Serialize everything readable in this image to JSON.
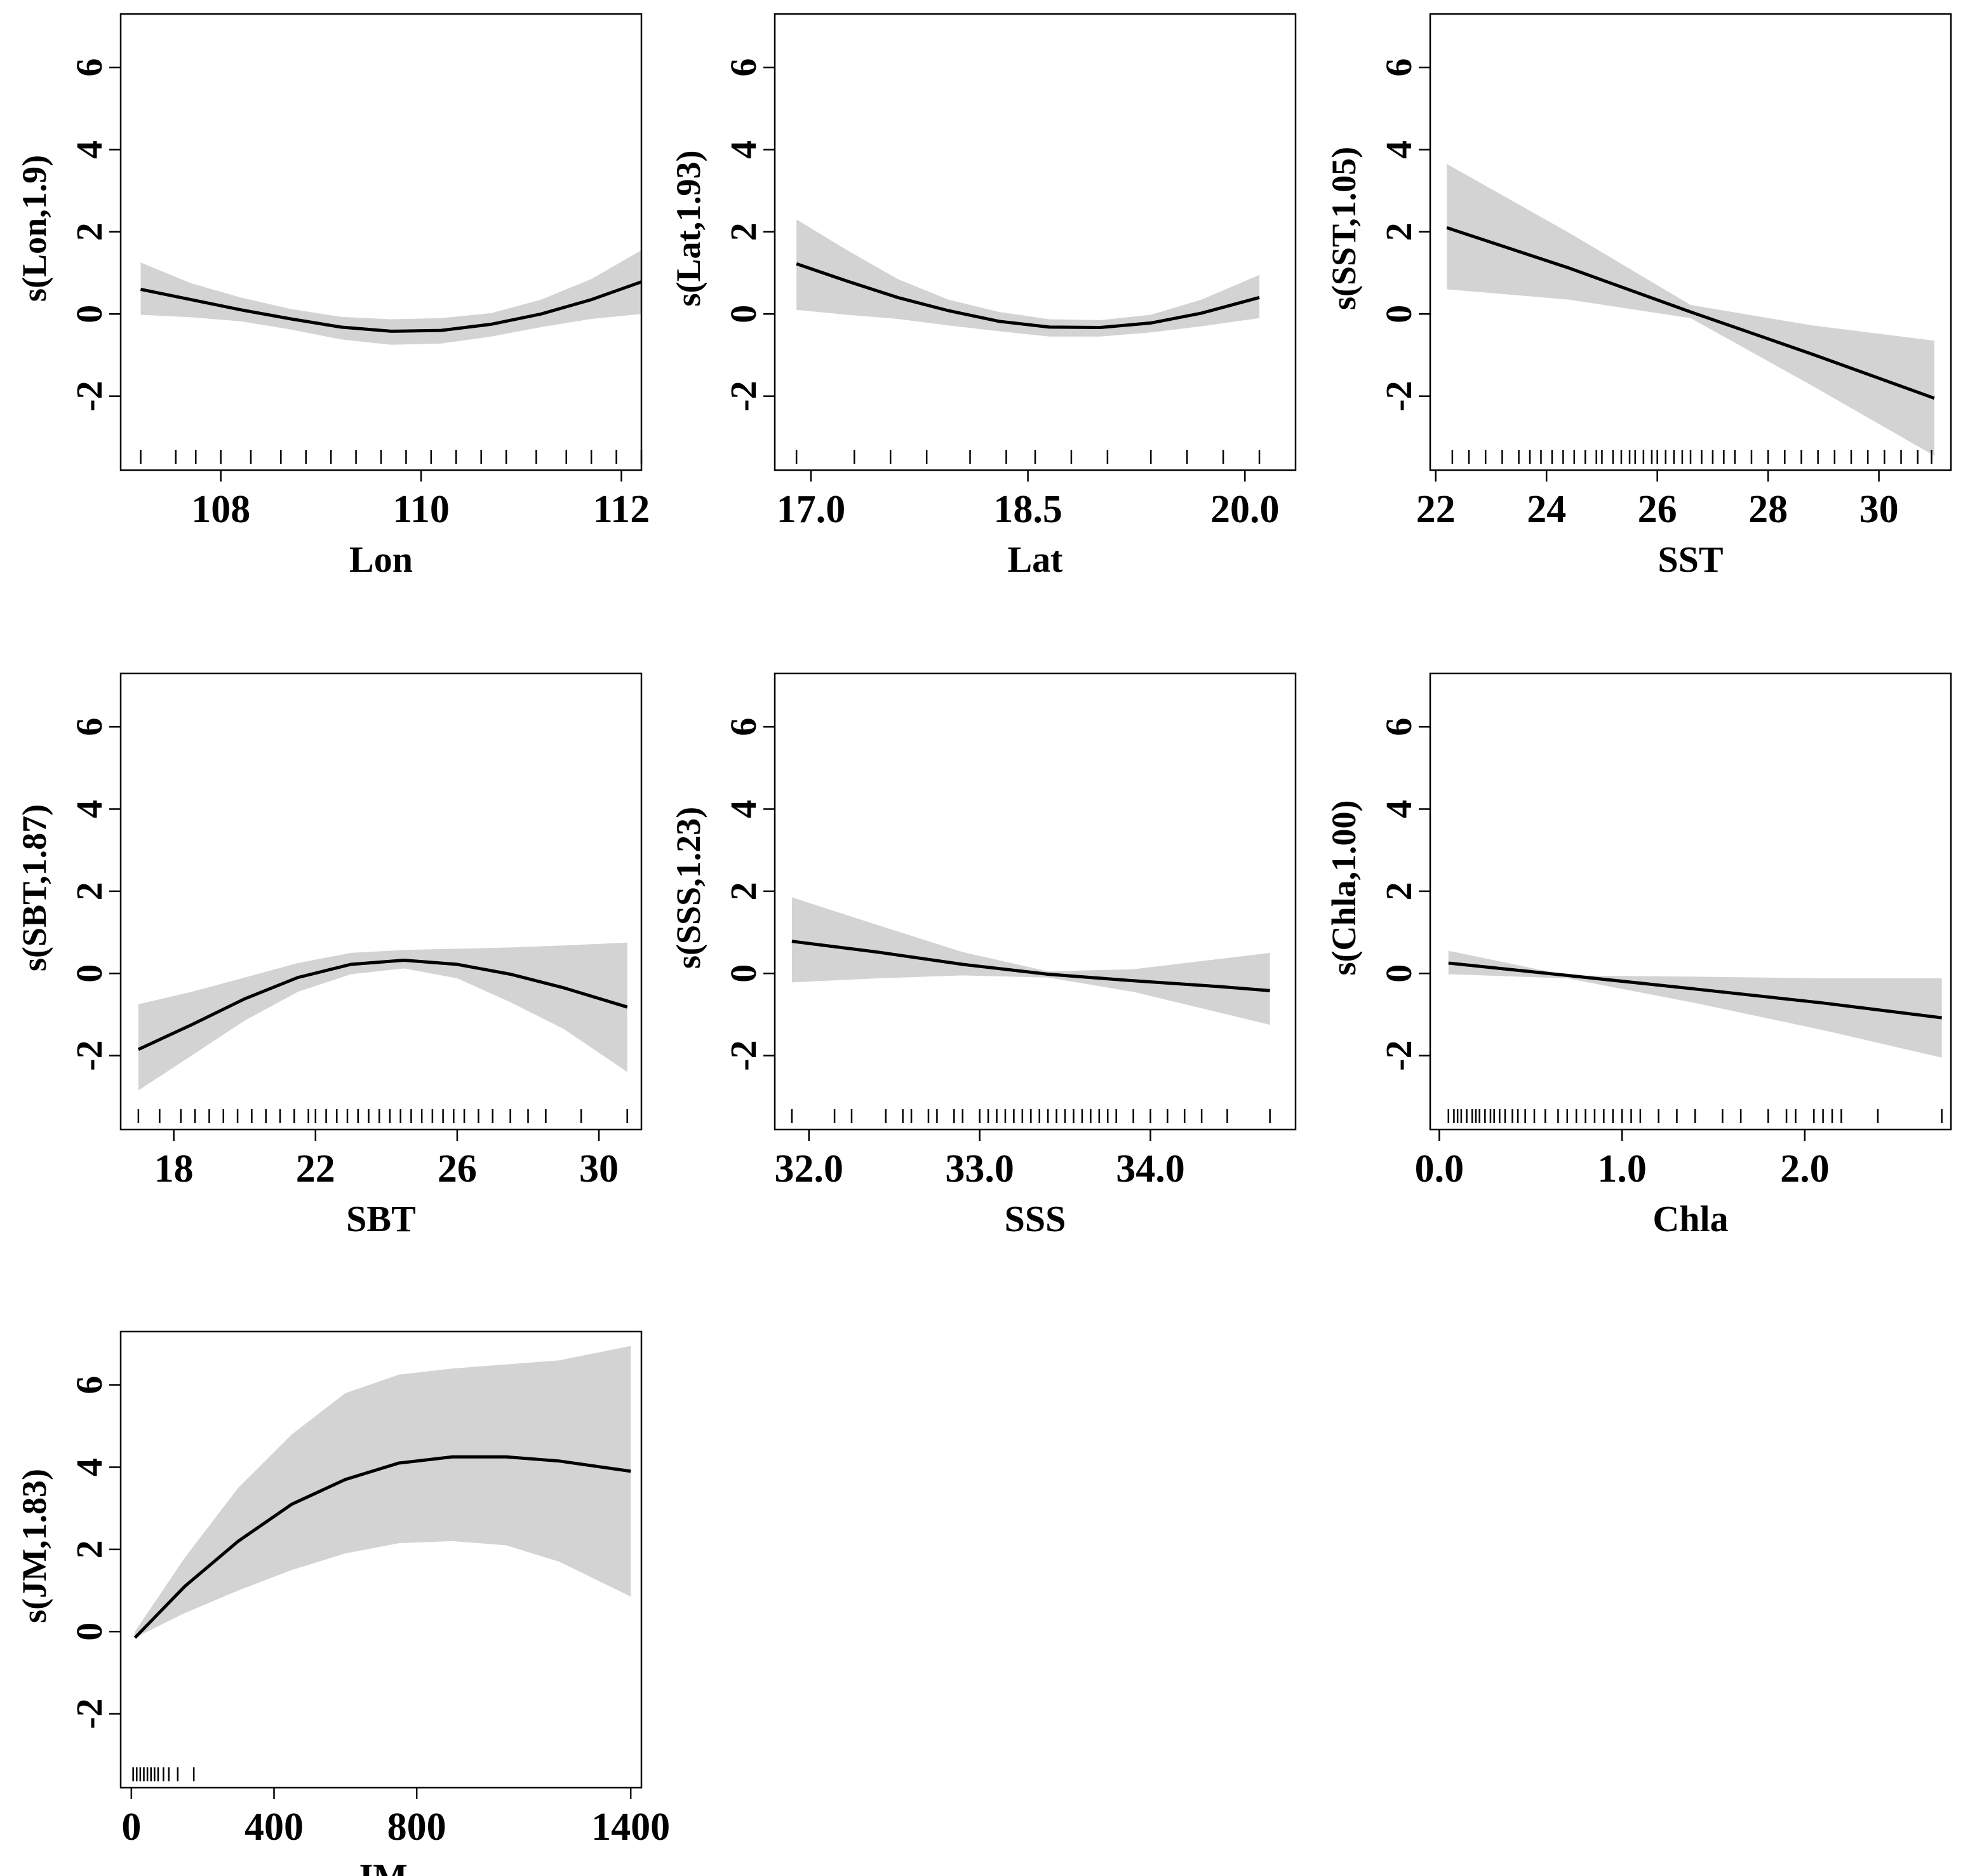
{
  "chart_data": [
    {
      "type": "line",
      "title": "",
      "xlabel": "Lon",
      "ylabel": "s(Lon,1.9)",
      "xlim": [
        107.0,
        112.2
      ],
      "ylim": [
        -3.8,
        7.3
      ],
      "xticks": [
        108,
        110,
        112
      ],
      "xtick_labels": [
        "108",
        "110",
        "112"
      ],
      "yticks": [
        -2,
        0,
        2,
        4,
        6
      ],
      "ytick_labels": [
        "-2",
        "0",
        "2",
        "4",
        "6"
      ],
      "x": [
        107.2,
        107.7,
        108.2,
        108.7,
        109.2,
        109.7,
        110.2,
        110.7,
        111.2,
        111.7,
        112.2
      ],
      "fit": [
        0.6,
        0.35,
        0.1,
        -0.12,
        -0.32,
        -0.42,
        -0.4,
        -0.25,
        0.0,
        0.35,
        0.78
      ],
      "upper": [
        1.25,
        0.75,
        0.4,
        0.12,
        -0.07,
        -0.13,
        -0.1,
        0.02,
        0.35,
        0.85,
        1.55
      ],
      "lower": [
        -0.02,
        -0.08,
        -0.18,
        -0.38,
        -0.62,
        -0.75,
        -0.72,
        -0.55,
        -0.32,
        -0.12,
        0.0
      ],
      "rug": [
        107.2,
        107.55,
        107.75,
        108.0,
        108.3,
        108.6,
        108.85,
        109.1,
        109.35,
        109.6,
        109.85,
        110.1,
        110.35,
        110.6,
        110.85,
        111.15,
        111.45,
        111.7,
        111.95,
        112.2
      ]
    },
    {
      "type": "line",
      "title": "",
      "xlabel": "Lat",
      "ylabel": "s(Lat,1.93)",
      "xlim": [
        16.75,
        20.35
      ],
      "ylim": [
        -3.8,
        7.3
      ],
      "xticks": [
        17.0,
        18.5,
        20.0
      ],
      "xtick_labels": [
        "17.0",
        "18.5",
        "20.0"
      ],
      "yticks": [
        -2,
        0,
        2,
        4,
        6
      ],
      "ytick_labels": [
        "-2",
        "0",
        "2",
        "4",
        "6"
      ],
      "x": [
        16.9,
        17.25,
        17.6,
        17.95,
        18.3,
        18.65,
        19.0,
        19.35,
        19.7,
        20.1
      ],
      "fit": [
        1.22,
        0.8,
        0.4,
        0.08,
        -0.18,
        -0.32,
        -0.33,
        -0.22,
        0.02,
        0.4
      ],
      "upper": [
        2.3,
        1.55,
        0.85,
        0.35,
        0.05,
        -0.13,
        -0.15,
        -0.02,
        0.35,
        0.95
      ],
      "lower": [
        0.1,
        -0.02,
        -0.12,
        -0.28,
        -0.42,
        -0.55,
        -0.55,
        -0.45,
        -0.3,
        -0.1
      ],
      "rug": [
        16.9,
        17.3,
        17.55,
        17.8,
        18.1,
        18.35,
        18.55,
        18.8,
        19.05,
        19.35,
        19.6,
        19.85,
        20.1
      ]
    },
    {
      "type": "line",
      "title": "",
      "xlabel": "SST",
      "ylabel": "s(SST,1.05)",
      "xlim": [
        21.9,
        31.3
      ],
      "ylim": [
        -3.8,
        7.3
      ],
      "xticks": [
        22,
        24,
        26,
        28,
        30
      ],
      "xtick_labels": [
        "22",
        "24",
        "26",
        "28",
        "30"
      ],
      "yticks": [
        -2,
        0,
        2,
        4,
        6
      ],
      "ytick_labels": [
        "-2",
        "0",
        "2",
        "4",
        "6"
      ],
      "x": [
        22.2,
        24.4,
        26.6,
        28.8,
        31.0
      ],
      "fit": [
        2.1,
        1.12,
        0.05,
        -0.98,
        -2.05
      ],
      "upper": [
        3.65,
        1.98,
        0.22,
        -0.28,
        -0.65
      ],
      "lower": [
        0.6,
        0.35,
        -0.1,
        -1.75,
        -3.45
      ],
      "rug": [
        22.3,
        22.6,
        22.9,
        23.2,
        23.5,
        23.7,
        23.9,
        24.1,
        24.3,
        24.5,
        24.7,
        24.9,
        25.0,
        25.2,
        25.35,
        25.5,
        25.6,
        25.75,
        25.9,
        26.0,
        26.15,
        26.3,
        26.45,
        26.6,
        26.8,
        27.0,
        27.2,
        27.4,
        27.7,
        28.0,
        28.3,
        28.6,
        28.9,
        29.2,
        29.5,
        29.8,
        30.1,
        30.4,
        30.7,
        30.95
      ]
    },
    {
      "type": "line",
      "title": "",
      "xlabel": "SBT",
      "ylabel": "s(SBT,1.87)",
      "xlim": [
        16.5,
        31.2
      ],
      "ylim": [
        -3.8,
        7.3
      ],
      "xticks": [
        18,
        22,
        26,
        30
      ],
      "xtick_labels": [
        "18",
        "22",
        "26",
        "30"
      ],
      "yticks": [
        -2,
        0,
        2,
        4,
        6
      ],
      "ytick_labels": [
        "-2",
        "0",
        "2",
        "4",
        "6"
      ],
      "x": [
        17.0,
        18.5,
        20.0,
        21.5,
        23.0,
        24.5,
        26.0,
        27.5,
        29.0,
        30.8
      ],
      "fit": [
        -1.85,
        -1.25,
        -0.62,
        -0.1,
        0.22,
        0.32,
        0.22,
        -0.02,
        -0.35,
        -0.82
      ],
      "upper": [
        -0.75,
        -0.45,
        -0.1,
        0.25,
        0.5,
        0.57,
        0.6,
        0.63,
        0.68,
        0.75
      ],
      "lower": [
        -2.85,
        -2.0,
        -1.15,
        -0.45,
        -0.02,
        0.12,
        -0.12,
        -0.7,
        -1.35,
        -2.4
      ],
      "rug": [
        17.0,
        17.6,
        18.2,
        18.6,
        19.0,
        19.4,
        19.8,
        20.2,
        20.6,
        21.0,
        21.4,
        21.8,
        22.0,
        22.3,
        22.6,
        22.9,
        23.2,
        23.5,
        23.8,
        24.1,
        24.4,
        24.7,
        25.0,
        25.3,
        25.6,
        25.9,
        26.2,
        26.6,
        27.0,
        27.5,
        28.0,
        28.5,
        29.5,
        30.8
      ]
    },
    {
      "type": "line",
      "title": "",
      "xlabel": "SSS",
      "ylabel": "s(SSS,1.23)",
      "xlim": [
        31.8,
        34.85
      ],
      "ylim": [
        -3.8,
        7.3
      ],
      "xticks": [
        32.0,
        33.0,
        34.0
      ],
      "xtick_labels": [
        "32.0",
        "33.0",
        "34.0"
      ],
      "yticks": [
        -2,
        0,
        2,
        4,
        6
      ],
      "ytick_labels": [
        "-2",
        "0",
        "2",
        "4",
        "6"
      ],
      "x": [
        31.9,
        32.4,
        32.9,
        33.4,
        33.9,
        34.4,
        34.7
      ],
      "fit": [
        0.78,
        0.52,
        0.22,
        -0.02,
        -0.18,
        -0.32,
        -0.42
      ],
      "upper": [
        1.85,
        1.18,
        0.52,
        0.05,
        0.1,
        0.35,
        0.5
      ],
      "lower": [
        -0.22,
        -0.12,
        -0.05,
        -0.1,
        -0.45,
        -0.95,
        -1.25
      ],
      "rug": [
        31.9,
        32.15,
        32.25,
        32.45,
        32.55,
        32.6,
        32.7,
        32.75,
        32.85,
        32.9,
        33.0,
        33.05,
        33.1,
        33.15,
        33.2,
        33.25,
        33.3,
        33.35,
        33.4,
        33.45,
        33.5,
        33.55,
        33.6,
        33.65,
        33.7,
        33.75,
        33.8,
        33.9,
        34.0,
        34.1,
        34.2,
        34.3,
        34.45,
        34.7
      ]
    },
    {
      "type": "line",
      "title": "",
      "xlabel": "Chla",
      "ylabel": "s(Chla,1.00)",
      "xlim": [
        -0.05,
        2.8
      ],
      "ylim": [
        -3.8,
        7.3
      ],
      "xticks": [
        0.0,
        1.0,
        2.0
      ],
      "xtick_labels": [
        "0.0",
        "1.0",
        "2.0"
      ],
      "yticks": [
        -2,
        0,
        2,
        4,
        6
      ],
      "ytick_labels": [
        "-2",
        "0",
        "2",
        "4",
        "6"
      ],
      "x": [
        0.05,
        0.7,
        1.4,
        2.1,
        2.75
      ],
      "fit": [
        0.25,
        -0.05,
        -0.38,
        -0.72,
        -1.08
      ],
      "upper": [
        0.55,
        -0.05,
        -0.08,
        -0.12,
        -0.12
      ],
      "lower": [
        -0.02,
        -0.12,
        -0.72,
        -1.38,
        -2.05
      ],
      "rug": [
        0.05,
        0.08,
        0.1,
        0.12,
        0.15,
        0.18,
        0.2,
        0.22,
        0.25,
        0.28,
        0.3,
        0.33,
        0.36,
        0.4,
        0.43,
        0.47,
        0.52,
        0.58,
        0.65,
        0.7,
        0.75,
        0.8,
        0.85,
        0.9,
        0.95,
        1.0,
        1.05,
        1.1,
        1.2,
        1.3,
        1.4,
        1.55,
        1.65,
        1.8,
        1.9,
        1.95,
        2.05,
        2.1,
        2.15,
        2.2,
        2.4,
        2.75
      ]
    },
    {
      "type": "line",
      "title": "",
      "xlabel": "JM",
      "ylabel": "s(JM,1.83)",
      "xlim": [
        -30,
        1430
      ],
      "ylim": [
        -3.8,
        7.3
      ],
      "xticks": [
        0,
        400,
        800,
        1400
      ],
      "xtick_labels": [
        "0",
        "400",
        "800",
        "1400"
      ],
      "yticks": [
        -2,
        0,
        2,
        4,
        6
      ],
      "ytick_labels": [
        "-2",
        "0",
        "2",
        "4",
        "6"
      ],
      "x": [
        10,
        150,
        300,
        450,
        600,
        750,
        900,
        1050,
        1200,
        1400
      ],
      "fit": [
        -0.15,
        1.1,
        2.2,
        3.1,
        3.7,
        4.1,
        4.25,
        4.25,
        4.15,
        3.9
      ],
      "upper": [
        0.0,
        1.8,
        3.5,
        4.8,
        5.8,
        6.25,
        6.4,
        6.5,
        6.6,
        6.95
      ],
      "lower": [
        -0.15,
        0.45,
        1.0,
        1.5,
        1.9,
        2.15,
        2.2,
        2.1,
        1.7,
        0.85
      ],
      "rug": [
        5,
        15,
        25,
        35,
        45,
        55,
        65,
        75,
        90,
        105,
        130,
        175
      ]
    }
  ]
}
